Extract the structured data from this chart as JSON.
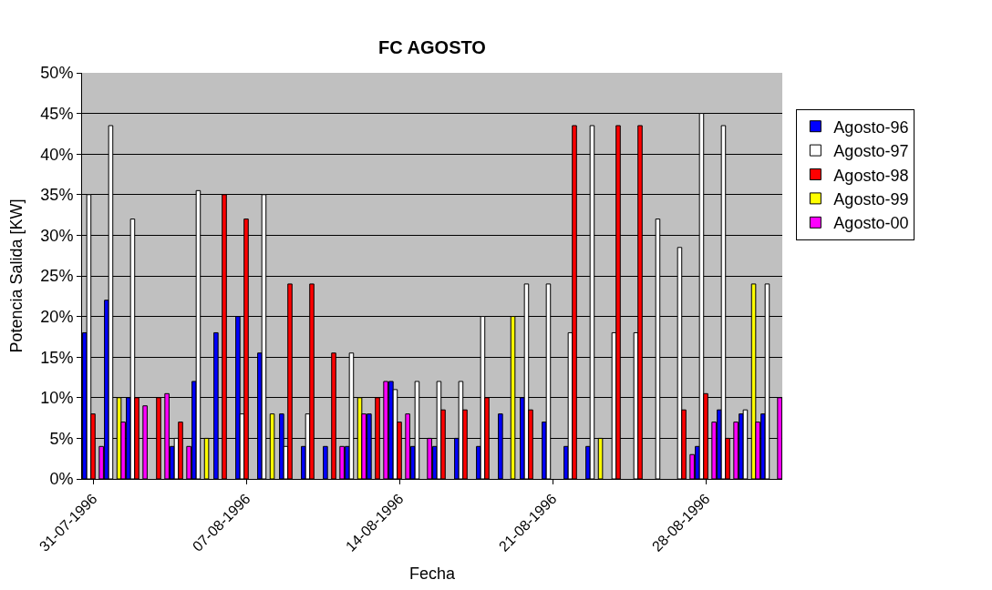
{
  "chart_data": {
    "type": "bar",
    "title": "FC AGOSTO",
    "xlabel": "Fecha",
    "ylabel": "Potencia Salida [KW]",
    "x": [
      "1996-07-31",
      "1996-08-01",
      "1996-08-02",
      "1996-08-03",
      "1996-08-04",
      "1996-08-05",
      "1996-08-06",
      "1996-08-07",
      "1996-08-08",
      "1996-08-09",
      "1996-08-10",
      "1996-08-11",
      "1996-08-12",
      "1996-08-13",
      "1996-08-14",
      "1996-08-15",
      "1996-08-16",
      "1996-08-17",
      "1996-08-18",
      "1996-08-19",
      "1996-08-20",
      "1996-08-21",
      "1996-08-22",
      "1996-08-23",
      "1996-08-24",
      "1996-08-25",
      "1996-08-26",
      "1996-08-27",
      "1996-08-28",
      "1996-08-29",
      "1996-08-30",
      "1996-08-31"
    ],
    "series": [
      {
        "name": "Agosto-96",
        "color": "#0000ff",
        "values": [
          18,
          22,
          10,
          null,
          4,
          12,
          18,
          20,
          15.5,
          8,
          4,
          4,
          4,
          8,
          12,
          4,
          4,
          5,
          4,
          8,
          10,
          7,
          4,
          4,
          null,
          null,
          null,
          null,
          4,
          8.5,
          8,
          8
        ]
      },
      {
        "name": "Agosto-97",
        "color": "#ffffff",
        "values": [
          35,
          43.5,
          32,
          null,
          5,
          35.5,
          null,
          8,
          35,
          4,
          8,
          null,
          15.5,
          null,
          11,
          12,
          12,
          12,
          20,
          null,
          24,
          24,
          18,
          43.5,
          18,
          18,
          32,
          28.5,
          45,
          43.5,
          8.5,
          24
        ]
      },
      {
        "name": "Agosto-98",
        "color": "#ff0000",
        "values": [
          8,
          null,
          10,
          10,
          7,
          null,
          35,
          32,
          null,
          24,
          24,
          15.5,
          null,
          10,
          7,
          null,
          8.5,
          8.5,
          10,
          null,
          8.5,
          null,
          43.5,
          null,
          43.5,
          43.5,
          null,
          8.5,
          10.5,
          5,
          null,
          null
        ]
      },
      {
        "name": "Agosto-99",
        "color": "#ffff00",
        "values": [
          null,
          10,
          null,
          null,
          null,
          5,
          null,
          null,
          8,
          null,
          null,
          null,
          10,
          null,
          null,
          null,
          null,
          null,
          null,
          20,
          null,
          null,
          null,
          5,
          null,
          null,
          null,
          null,
          null,
          null,
          24,
          null
        ]
      },
      {
        "name": "Agosto-00",
        "color": "#ff00ff",
        "values": [
          4,
          7,
          9,
          10.5,
          4,
          null,
          null,
          null,
          null,
          null,
          null,
          4,
          8,
          12,
          8,
          5,
          null,
          null,
          null,
          null,
          null,
          null,
          null,
          null,
          null,
          null,
          null,
          3,
          7,
          7,
          7,
          10
        ]
      }
    ],
    "xlim": [
      "1996-07-30T12:00",
      "1996-08-31T12:00"
    ],
    "xticks": [
      {
        "value": "1996-07-31",
        "label": "31-07-1996"
      },
      {
        "value": "1996-08-07",
        "label": "07-08-1996"
      },
      {
        "value": "1996-08-14",
        "label": "14-08-1996"
      },
      {
        "value": "1996-08-21",
        "label": "21-08-1996"
      },
      {
        "value": "1996-08-28",
        "label": "28-08-1996"
      }
    ],
    "ylim": [
      0,
      50
    ],
    "yticks": [
      {
        "value": 0,
        "label": "0%"
      },
      {
        "value": 5,
        "label": "5%"
      },
      {
        "value": 10,
        "label": "10%"
      },
      {
        "value": 15,
        "label": "15%"
      },
      {
        "value": 20,
        "label": "20%"
      },
      {
        "value": 25,
        "label": "25%"
      },
      {
        "value": 30,
        "label": "30%"
      },
      {
        "value": 35,
        "label": "35%"
      },
      {
        "value": 40,
        "label": "40%"
      },
      {
        "value": 45,
        "label": "45%"
      },
      {
        "value": 50,
        "label": "50%"
      }
    ],
    "grid": "y",
    "legend": "right"
  }
}
